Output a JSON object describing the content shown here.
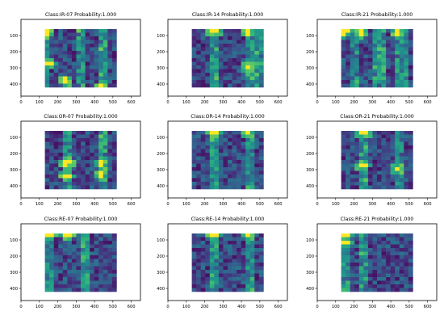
{
  "chart_data": [
    {
      "type": "heatmap",
      "title": "Class:IR-07 Probability:1.000",
      "xlim": [
        0,
        650
      ],
      "ylim": [
        475,
        0
      ],
      "xticks": [
        0,
        100,
        200,
        300,
        400,
        500,
        600
      ],
      "yticks": [
        100,
        200,
        300,
        400
      ],
      "extent": [
        130,
        520,
        60,
        420
      ],
      "colormap": "viridis",
      "grid_size": [
        16,
        16
      ],
      "heat_seed": 7,
      "hotspots": [
        [
          145,
          78
        ],
        [
          150,
          270
        ],
        [
          245,
          380
        ],
        [
          440,
          420
        ]
      ],
      "stripes": [
        135,
        320,
        440
      ]
    },
    {
      "type": "heatmap",
      "title": "Class:IR-14 Probability:1.000",
      "xlim": [
        0,
        650
      ],
      "ylim": [
        475,
        0
      ],
      "xticks": [
        0,
        100,
        200,
        300,
        400,
        500,
        600
      ],
      "yticks": [
        100,
        200,
        300,
        400
      ],
      "extent": [
        130,
        520,
        60,
        420
      ],
      "colormap": "viridis",
      "grid_size": [
        16,
        16
      ],
      "heat_seed": 14,
      "hotspots": [
        [
          250,
          78
        ],
        [
          440,
          300
        ],
        [
          440,
          78
        ]
      ],
      "stripes": [
        250,
        440,
        500
      ]
    },
    {
      "type": "heatmap",
      "title": "Class:IR-21 Probability:1.000",
      "xlim": [
        0,
        650
      ],
      "ylim": [
        475,
        0
      ],
      "xticks": [
        0,
        100,
        200,
        300,
        400,
        500,
        600
      ],
      "yticks": [
        100,
        200,
        300,
        400
      ],
      "extent": [
        130,
        520,
        60,
        420
      ],
      "colormap": "viridis",
      "grid_size": [
        16,
        16
      ],
      "heat_seed": 21,
      "hotspots": [
        [
          150,
          78
        ],
        [
          245,
          78
        ],
        [
          440,
          78
        ]
      ],
      "stripes": [
        200,
        340,
        460
      ]
    },
    {
      "type": "heatmap",
      "title": "Class:OR-07 Probability:1.000",
      "xlim": [
        0,
        650
      ],
      "ylim": [
        475,
        0
      ],
      "xticks": [
        0,
        100,
        200,
        300,
        400,
        500,
        600
      ],
      "yticks": [
        100,
        200,
        300,
        400
      ],
      "extent": [
        130,
        520,
        60,
        420
      ],
      "colormap": "viridis",
      "grid_size": [
        16,
        16
      ],
      "heat_seed": 307,
      "hotspots": [
        [
          250,
          260
        ],
        [
          250,
          340
        ],
        [
          440,
          260
        ],
        [
          440,
          330
        ]
      ],
      "stripes": [
        250,
        440
      ]
    },
    {
      "type": "heatmap",
      "title": "Class:OR-14 Probability:1.000",
      "xlim": [
        0,
        650
      ],
      "ylim": [
        475,
        0
      ],
      "xticks": [
        0,
        100,
        200,
        300,
        400,
        500,
        600
      ],
      "yticks": [
        100,
        200,
        300,
        400
      ],
      "extent": [
        130,
        520,
        60,
        420
      ],
      "colormap": "viridis",
      "grid_size": [
        16,
        16
      ],
      "heat_seed": 314,
      "hotspots": [
        [
          250,
          70
        ],
        [
          440,
          70
        ]
      ],
      "stripes": [
        250,
        440
      ]
    },
    {
      "type": "heatmap",
      "title": "Class:OR-21 Probability:1.000",
      "xlim": [
        0,
        650
      ],
      "ylim": [
        475,
        0
      ],
      "xticks": [
        0,
        100,
        200,
        300,
        400,
        500,
        600
      ],
      "yticks": [
        100,
        200,
        300,
        400
      ],
      "extent": [
        130,
        520,
        60,
        420
      ],
      "colormap": "viridis",
      "grid_size": [
        16,
        16
      ],
      "heat_seed": 321,
      "hotspots": [
        [
          250,
          280
        ],
        [
          440,
          300
        ],
        [
          250,
          78
        ]
      ],
      "stripes": [
        250,
        440
      ]
    },
    {
      "type": "heatmap",
      "title": "Class:RE-07 Probability:1.000",
      "xlim": [
        0,
        650
      ],
      "ylim": [
        475,
        0
      ],
      "xticks": [
        0,
        100,
        200,
        300,
        400,
        500,
        600
      ],
      "yticks": [
        100,
        200,
        300,
        400
      ],
      "extent": [
        130,
        520,
        60,
        420
      ],
      "colormap": "viridis",
      "grid_size": [
        16,
        16
      ],
      "heat_seed": 507,
      "hotspots": [
        [
          150,
          65
        ],
        [
          250,
          65
        ]
      ],
      "stripes": [
        150,
        350
      ]
    },
    {
      "type": "heatmap",
      "title": "Class:RE-14 Probability:1.000",
      "xlim": [
        0,
        650
      ],
      "ylim": [
        475,
        0
      ],
      "xticks": [
        0,
        100,
        200,
        300,
        400,
        500,
        600
      ],
      "yticks": [
        100,
        200,
        300,
        400
      ],
      "extent": [
        130,
        520,
        60,
        420
      ],
      "colormap": "viridis",
      "grid_size": [
        16,
        16
      ],
      "heat_seed": 514,
      "hotspots": [
        [
          250,
          65
        ],
        [
          440,
          65
        ]
      ],
      "stripes": [
        250,
        440
      ]
    },
    {
      "type": "heatmap",
      "title": "Class:RE-21 Probability:1.000",
      "xlim": [
        0,
        650
      ],
      "ylim": [
        475,
        0
      ],
      "xticks": [
        0,
        100,
        200,
        300,
        400,
        500,
        600
      ],
      "yticks": [
        100,
        200,
        300,
        400
      ],
      "extent": [
        130,
        520,
        60,
        420
      ],
      "colormap": "viridis",
      "grid_size": [
        16,
        16
      ],
      "heat_seed": 521,
      "hotspots": [
        [
          150,
          65
        ],
        [
          150,
          110
        ]
      ],
      "stripes": [
        150,
        250
      ]
    }
  ],
  "colors": {
    "background": "#ffffff",
    "axes": "#000000",
    "text": "#000000",
    "viridis_low": "#440154",
    "viridis_high": "#fde725"
  }
}
